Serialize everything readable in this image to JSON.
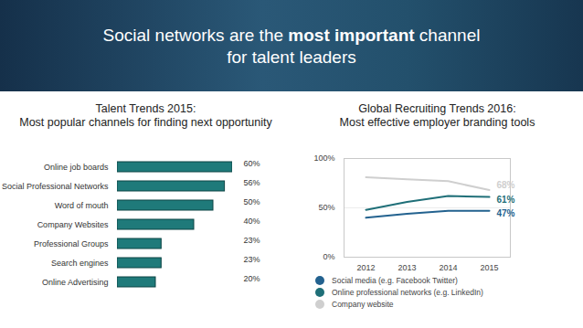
{
  "header": {
    "title": [
      [
        {
          "text": "Social networks are the "
        },
        {
          "text": "most important",
          "bold": true
        },
        {
          "text": " channel"
        }
      ],
      [
        {
          "text": "for talent leaders"
        }
      ]
    ]
  },
  "chart_data": [
    {
      "type": "bar",
      "orientation": "horizontal",
      "title": "Talent Trends 2015:",
      "subtitle": "Most popular channels for finding next opportunity",
      "categories": [
        "Online job boards",
        "Social Professional Networks",
        "Word of mouth",
        "Company Websites",
        "Professional Groups",
        "Search engines",
        "Online Advertising"
      ],
      "values": [
        60,
        56,
        50,
        40,
        23,
        23,
        20
      ],
      "value_labels": [
        "60%",
        "56%",
        "50%",
        "40%",
        "23%",
        "23%",
        "20%"
      ],
      "data_labels": true,
      "color": "#1f7a7a",
      "xlim": [
        0,
        60
      ],
      "tick_labels": "y"
    },
    {
      "type": "line",
      "title": "Global Recruiting Trends 2016:",
      "subtitle": "Most effective employer branding tools",
      "x": [
        "2012",
        "2013",
        "2014",
        "2015"
      ],
      "ylim": [
        0,
        100
      ],
      "yticks": [
        {
          "value": 0,
          "label": "0%"
        },
        {
          "value": 50,
          "label": "50%"
        },
        {
          "value": 100,
          "label": "100%"
        }
      ],
      "grid": true,
      "legend": "bottom",
      "data_labels": true,
      "series": [
        {
          "name": "Social media (e.g. Facebook Twitter)",
          "color": "#23628f",
          "values": [
            40,
            44,
            47,
            47
          ],
          "value_labels": [
            null,
            null,
            null,
            "47%"
          ]
        },
        {
          "name": "Online professional networks (e.g. LinkedIn)",
          "color": "#1f6f78",
          "values": [
            48,
            56,
            62,
            61
          ],
          "value_labels": [
            null,
            null,
            null,
            "61%"
          ]
        },
        {
          "name": "Company website",
          "color": "#cfcfcf",
          "values": [
            81,
            79,
            77,
            68
          ],
          "value_labels": [
            null,
            null,
            null,
            "68%"
          ]
        }
      ]
    }
  ]
}
